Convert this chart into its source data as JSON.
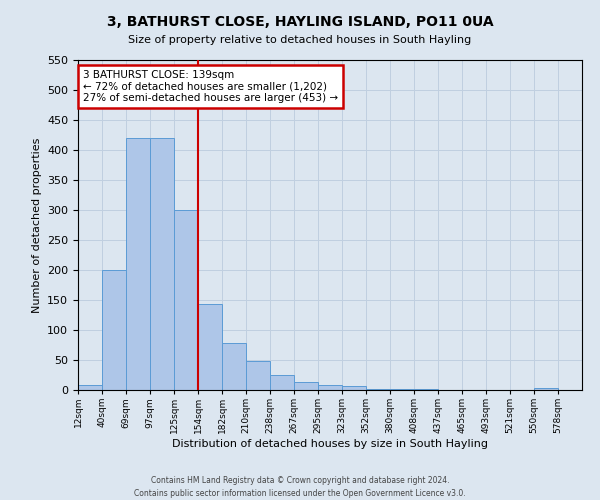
{
  "title": "3, BATHURST CLOSE, HAYLING ISLAND, PO11 0UA",
  "subtitle": "Size of property relative to detached houses in South Hayling",
  "xlabel": "Distribution of detached houses by size in South Hayling",
  "ylabel": "Number of detached properties",
  "bin_labels": [
    "12sqm",
    "40sqm",
    "69sqm",
    "97sqm",
    "125sqm",
    "154sqm",
    "182sqm",
    "210sqm",
    "238sqm",
    "267sqm",
    "295sqm",
    "323sqm",
    "352sqm",
    "380sqm",
    "408sqm",
    "437sqm",
    "465sqm",
    "493sqm",
    "521sqm",
    "550sqm",
    "578sqm"
  ],
  "bar_values": [
    8,
    200,
    420,
    420,
    300,
    143,
    78,
    48,
    25,
    13,
    8,
    6,
    2,
    1,
    1,
    0,
    0,
    0,
    0,
    3,
    0
  ],
  "bar_color": "#aec6e8",
  "bar_edge_color": "#5b9bd5",
  "vline_pos": 5.0,
  "annotation_title": "3 BATHURST CLOSE: 139sqm",
  "annotation_line1": "← 72% of detached houses are smaller (1,202)",
  "annotation_line2": "27% of semi-detached houses are larger (453) →",
  "annotation_box_color": "#ffffff",
  "annotation_box_edge": "#cc0000",
  "ylim": [
    0,
    550
  ],
  "yticks": [
    0,
    50,
    100,
    150,
    200,
    250,
    300,
    350,
    400,
    450,
    500,
    550
  ],
  "grid_color": "#c0cfe0",
  "bg_color": "#dce6f0",
  "plot_bg_color": "#dce6f0",
  "footer_line1": "Contains HM Land Registry data © Crown copyright and database right 2024.",
  "footer_line2": "Contains public sector information licensed under the Open Government Licence v3.0."
}
